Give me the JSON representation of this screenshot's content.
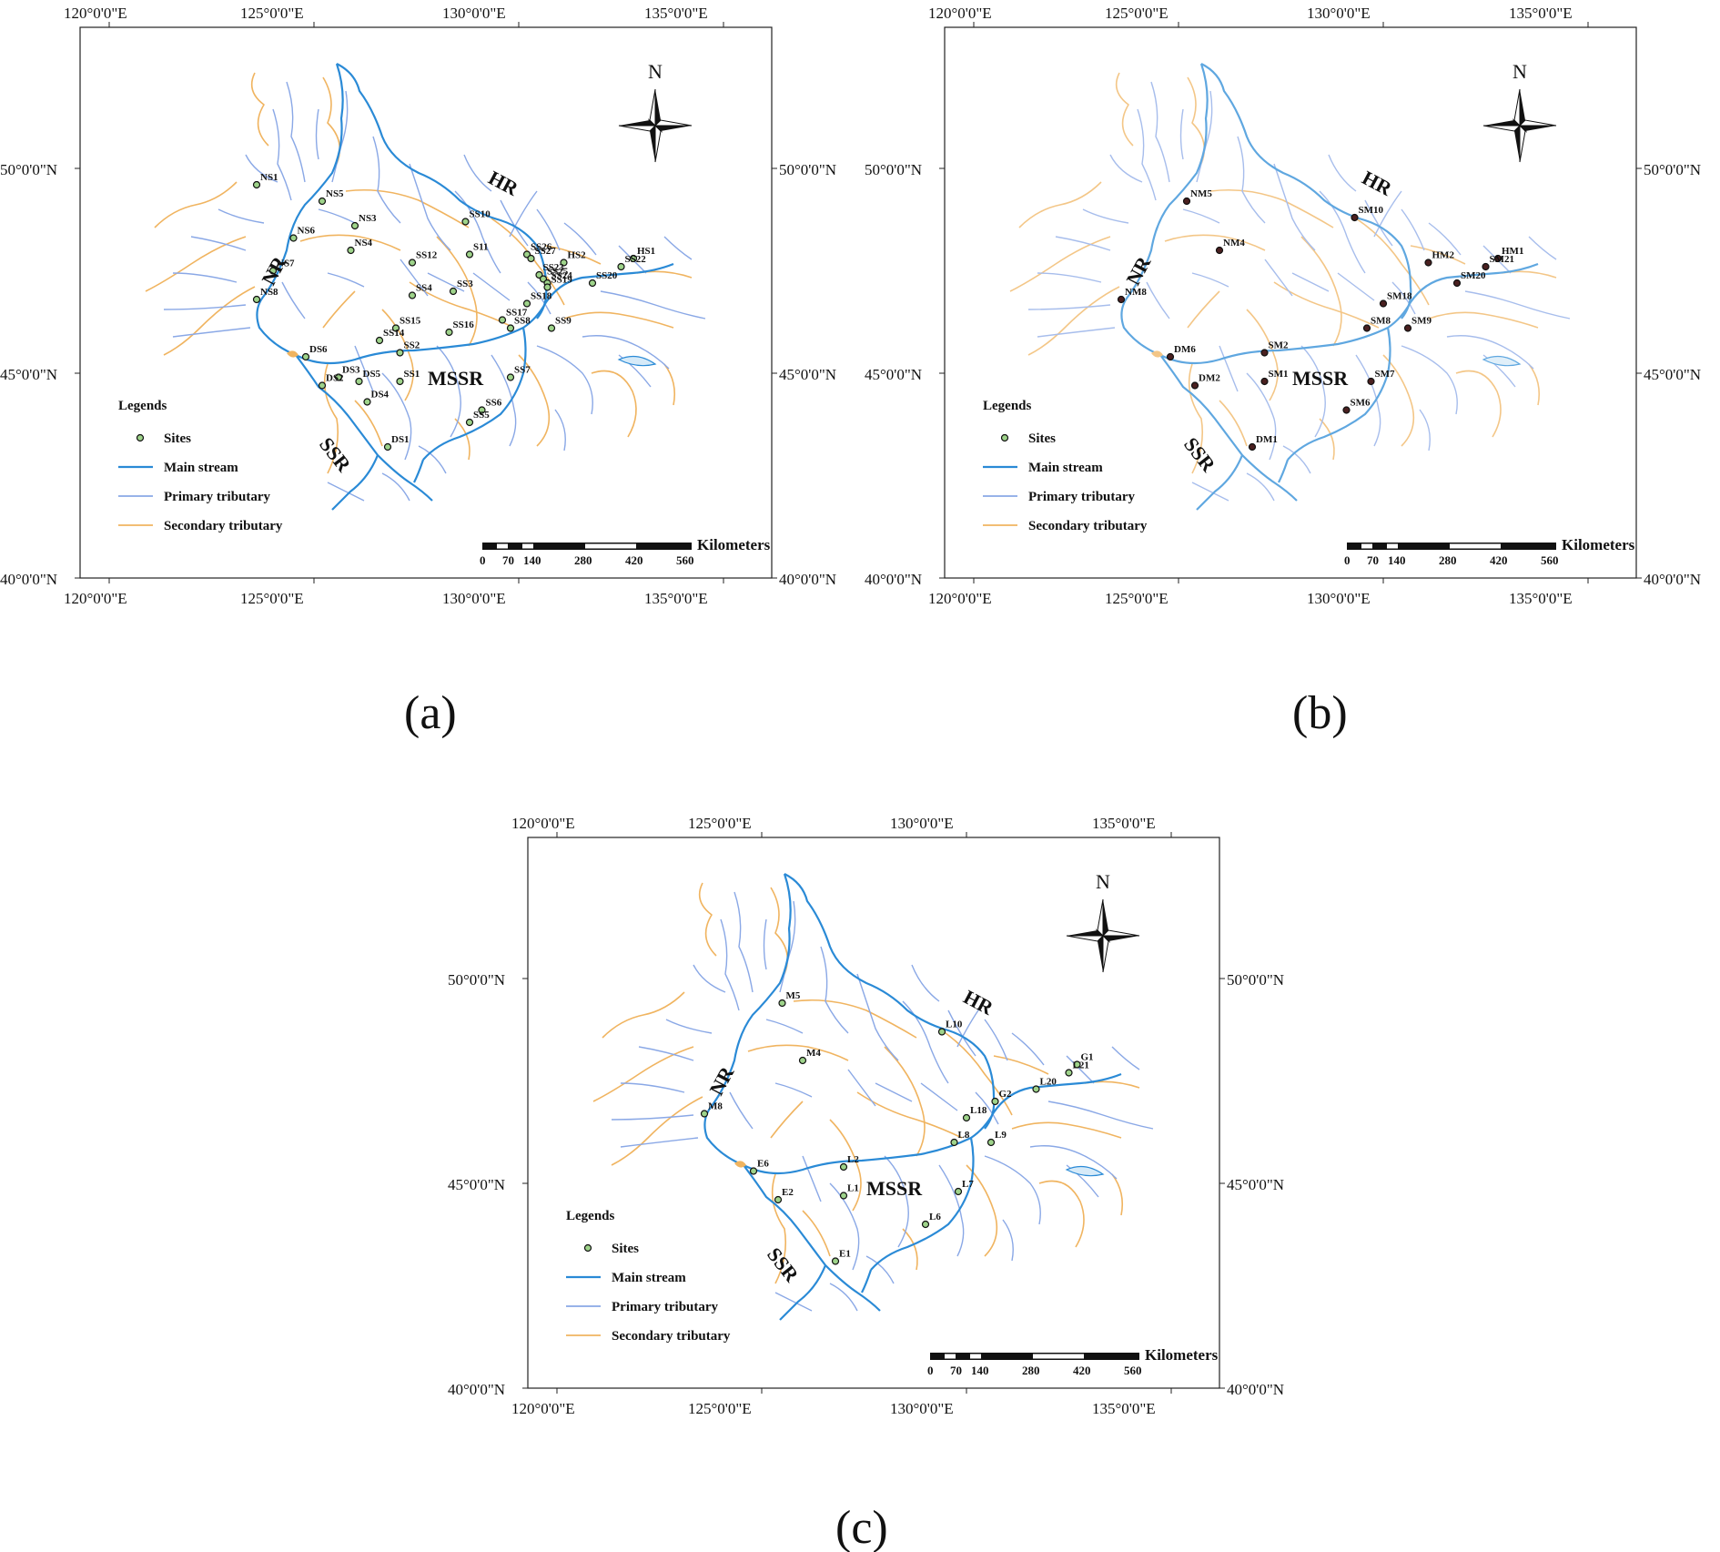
{
  "legend": {
    "title": "Legends",
    "sites": "Sites",
    "main_stream": "Main stream",
    "primary_tributary": "Primary tributary",
    "secondary_tributary": "Secondary tributary"
  },
  "colors": {
    "main_stream": "#2a8ad6",
    "primary_tributary": "#8aa8e6",
    "secondary_tributary": "#f0b460",
    "site_fill": "#9ed38a",
    "site_fill_b": "#4a2020"
  },
  "scale": {
    "unit": "Kilometers",
    "ticks": [
      "0",
      "70",
      "140",
      "280",
      "420",
      "560"
    ]
  },
  "north_label": "N",
  "axes": {
    "lon_ticks": [
      "120°0'0\"E",
      "125°0'0\"E",
      "130°0'0\"E",
      "135°0'0\"E"
    ],
    "lat_ticks": [
      "50°0'0\"N",
      "45°0'0\"N",
      "40°0'0\"N"
    ],
    "lon_values": [
      120,
      125,
      130,
      135
    ],
    "lat_values": [
      50,
      45,
      40
    ]
  },
  "regions": [
    "NR",
    "HR",
    "MSSR",
    "SSR"
  ],
  "panels": [
    {
      "caption": "(a)",
      "sites": [
        {
          "name": "NS1",
          "lon": 123.6,
          "lat": 49.6
        },
        {
          "name": "NS5",
          "lon": 125.2,
          "lat": 49.2
        },
        {
          "name": "NS3",
          "lon": 126.0,
          "lat": 48.6
        },
        {
          "name": "NS6",
          "lon": 124.5,
          "lat": 48.3
        },
        {
          "name": "NS4",
          "lon": 125.9,
          "lat": 48.0
        },
        {
          "name": "NS7",
          "lon": 124.0,
          "lat": 47.5
        },
        {
          "name": "NS8",
          "lon": 123.6,
          "lat": 46.8
        },
        {
          "name": "SS10",
          "lon": 128.7,
          "lat": 48.7
        },
        {
          "name": "S11",
          "lon": 128.8,
          "lat": 47.9
        },
        {
          "name": "SS12",
          "lon": 127.4,
          "lat": 47.7
        },
        {
          "name": "SS26",
          "lon": 130.2,
          "lat": 47.9
        },
        {
          "name": "SS27",
          "lon": 130.3,
          "lat": 47.8
        },
        {
          "name": "HS2",
          "lon": 131.1,
          "lat": 47.7
        },
        {
          "name": "HS1",
          "lon": 132.8,
          "lat": 47.8
        },
        {
          "name": "SS22",
          "lon": 132.5,
          "lat": 47.6
        },
        {
          "name": "SS23",
          "lon": 130.5,
          "lat": 47.4
        },
        {
          "name": "SS25",
          "lon": 130.6,
          "lat": 47.3
        },
        {
          "name": "SS24",
          "lon": 130.7,
          "lat": 47.2
        },
        {
          "name": "SS20",
          "lon": 131.8,
          "lat": 47.2
        },
        {
          "name": "SS19",
          "lon": 130.7,
          "lat": 47.1
        },
        {
          "name": "SS4",
          "lon": 127.4,
          "lat": 46.9
        },
        {
          "name": "SS3",
          "lon": 128.4,
          "lat": 47.0
        },
        {
          "name": "SS18",
          "lon": 130.2,
          "lat": 46.7
        },
        {
          "name": "SS17",
          "lon": 129.6,
          "lat": 46.3
        },
        {
          "name": "SS8",
          "lon": 129.8,
          "lat": 46.1
        },
        {
          "name": "SS9",
          "lon": 130.8,
          "lat": 46.1
        },
        {
          "name": "SS15",
          "lon": 127.0,
          "lat": 46.1
        },
        {
          "name": "SS16",
          "lon": 128.3,
          "lat": 46.0
        },
        {
          "name": "SS14",
          "lon": 126.6,
          "lat": 45.8
        },
        {
          "name": "SS2",
          "lon": 127.1,
          "lat": 45.5
        },
        {
          "name": "DS6",
          "lon": 124.8,
          "lat": 45.4
        },
        {
          "name": "DS3",
          "lon": 125.6,
          "lat": 44.9
        },
        {
          "name": "DS5",
          "lon": 126.1,
          "lat": 44.8
        },
        {
          "name": "SS1",
          "lon": 127.1,
          "lat": 44.8
        },
        {
          "name": "DS2",
          "lon": 125.2,
          "lat": 44.7
        },
        {
          "name": "DS4",
          "lon": 126.3,
          "lat": 44.3
        },
        {
          "name": "SS7",
          "lon": 129.8,
          "lat": 44.9
        },
        {
          "name": "SS6",
          "lon": 129.1,
          "lat": 44.1
        },
        {
          "name": "SS5",
          "lon": 128.8,
          "lat": 43.8
        },
        {
          "name": "DS1",
          "lon": 126.8,
          "lat": 43.2
        }
      ]
    },
    {
      "caption": "(b)",
      "sites": [
        {
          "name": "NM5",
          "lon": 125.2,
          "lat": 49.2
        },
        {
          "name": "NM4",
          "lon": 126.0,
          "lat": 48.0
        },
        {
          "name": "NM8",
          "lon": 123.6,
          "lat": 46.8
        },
        {
          "name": "SM10",
          "lon": 129.3,
          "lat": 48.8
        },
        {
          "name": "HM2",
          "lon": 131.1,
          "lat": 47.7
        },
        {
          "name": "HM1",
          "lon": 132.8,
          "lat": 47.8
        },
        {
          "name": "SM21",
          "lon": 132.5,
          "lat": 47.6
        },
        {
          "name": "SM20",
          "lon": 131.8,
          "lat": 47.2
        },
        {
          "name": "SM18",
          "lon": 130.0,
          "lat": 46.7
        },
        {
          "name": "SM8",
          "lon": 129.6,
          "lat": 46.1
        },
        {
          "name": "SM9",
          "lon": 130.6,
          "lat": 46.1
        },
        {
          "name": "SM2",
          "lon": 127.1,
          "lat": 45.5
        },
        {
          "name": "DM6",
          "lon": 124.8,
          "lat": 45.4
        },
        {
          "name": "DM2",
          "lon": 125.4,
          "lat": 44.7
        },
        {
          "name": "SM1",
          "lon": 127.1,
          "lat": 44.8
        },
        {
          "name": "SM7",
          "lon": 129.7,
          "lat": 44.8
        },
        {
          "name": "SM6",
          "lon": 129.1,
          "lat": 44.1
        },
        {
          "name": "DM1",
          "lon": 126.8,
          "lat": 43.2
        }
      ]
    },
    {
      "caption": "(c)",
      "sites": [
        {
          "name": "M5",
          "lon": 125.5,
          "lat": 49.4
        },
        {
          "name": "M4",
          "lon": 126.0,
          "lat": 48.0
        },
        {
          "name": "M8",
          "lon": 123.6,
          "lat": 46.7
        },
        {
          "name": "L10",
          "lon": 129.4,
          "lat": 48.7
        },
        {
          "name": "G1",
          "lon": 132.7,
          "lat": 47.9
        },
        {
          "name": "L21",
          "lon": 132.5,
          "lat": 47.7
        },
        {
          "name": "L20",
          "lon": 131.7,
          "lat": 47.3
        },
        {
          "name": "G2",
          "lon": 130.7,
          "lat": 47.0
        },
        {
          "name": "L18",
          "lon": 130.0,
          "lat": 46.6
        },
        {
          "name": "L8",
          "lon": 129.7,
          "lat": 46.0
        },
        {
          "name": "L9",
          "lon": 130.6,
          "lat": 46.0
        },
        {
          "name": "L2",
          "lon": 127.0,
          "lat": 45.4
        },
        {
          "name": "E6",
          "lon": 124.8,
          "lat": 45.3
        },
        {
          "name": "E2",
          "lon": 125.4,
          "lat": 44.6
        },
        {
          "name": "L1",
          "lon": 127.0,
          "lat": 44.7
        },
        {
          "name": "L7",
          "lon": 129.8,
          "lat": 44.8
        },
        {
          "name": "L6",
          "lon": 129.0,
          "lat": 44.0
        },
        {
          "name": "E1",
          "lon": 126.8,
          "lat": 43.1
        }
      ]
    }
  ]
}
